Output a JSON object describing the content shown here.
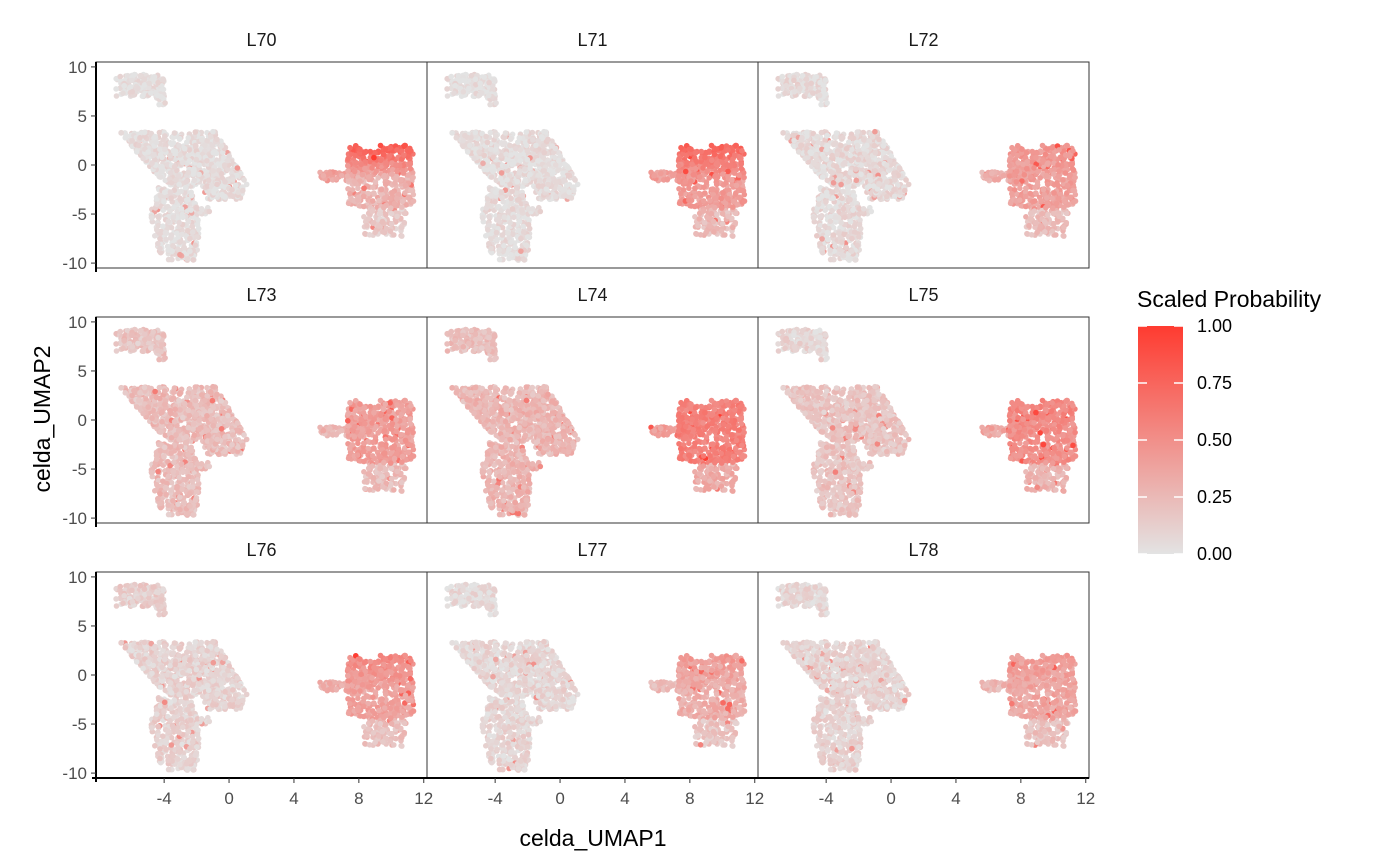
{
  "chart_data": {
    "type": "scatter",
    "facet_labels": [
      "L70",
      "L71",
      "L72",
      "L73",
      "L74",
      "L75",
      "L76",
      "L77",
      "L78"
    ],
    "xlabel": "celda_UMAP1",
    "ylabel": "celda_UMAP2",
    "x_ticks": [
      -4,
      0,
      4,
      8,
      12
    ],
    "y_ticks": [
      10,
      5,
      0,
      -5,
      -10
    ],
    "xlim": [
      -8.2,
      12.2
    ],
    "ylim": [
      -10.5,
      10.5
    ],
    "legend": {
      "title": "Scaled Probability",
      "position": "right",
      "ticks": [
        "1.00",
        "0.75",
        "0.50",
        "0.25",
        "0.00"
      ],
      "ticks_values": [
        1.0,
        0.75,
        0.5,
        0.25,
        0.0
      ],
      "low_color": "#e3e3e3",
      "high_color": "#ff3b30"
    },
    "clusters": [
      {
        "name": "top-left",
        "x_range": [
          -7.2,
          -4.0
        ],
        "y_range": [
          6.8,
          9.4
        ]
      },
      {
        "name": "main-body",
        "x_range": [
          -6.8,
          1.2
        ],
        "y_range": [
          -9.8,
          3.5
        ]
      },
      {
        "name": "right-island",
        "x_range": [
          5.6,
          11.4
        ],
        "y_range": [
          -7.5,
          2.1
        ]
      }
    ],
    "facet_patterns": [
      {
        "label": "L70",
        "main": 0.03,
        "left": 0.02,
        "right": 0.55,
        "right_top_bias": 1.0
      },
      {
        "label": "L71",
        "main": 0.04,
        "left": 0.02,
        "right": 0.6,
        "right_top_bias": 0.6
      },
      {
        "label": "L72",
        "main": 0.06,
        "left": 0.05,
        "right": 0.42,
        "right_top_bias": 0.1
      },
      {
        "label": "L73",
        "main": 0.22,
        "left": 0.18,
        "right": 0.4,
        "right_top_bias": 0.0
      },
      {
        "label": "L74",
        "main": 0.26,
        "left": 0.2,
        "right": 0.58,
        "right_top_bias": 0.0
      },
      {
        "label": "L75",
        "main": 0.18,
        "left": 0.08,
        "right": 0.52,
        "right_top_bias": 0.1
      },
      {
        "label": "L76",
        "main": 0.1,
        "left": 0.12,
        "right": 0.45,
        "right_top_bias": 0.3
      },
      {
        "label": "L77",
        "main": 0.08,
        "left": 0.05,
        "right": 0.35,
        "right_top_bias": 0.2
      },
      {
        "label": "L78",
        "main": 0.1,
        "left": 0.08,
        "right": 0.38,
        "right_top_bias": 0.1
      }
    ]
  }
}
